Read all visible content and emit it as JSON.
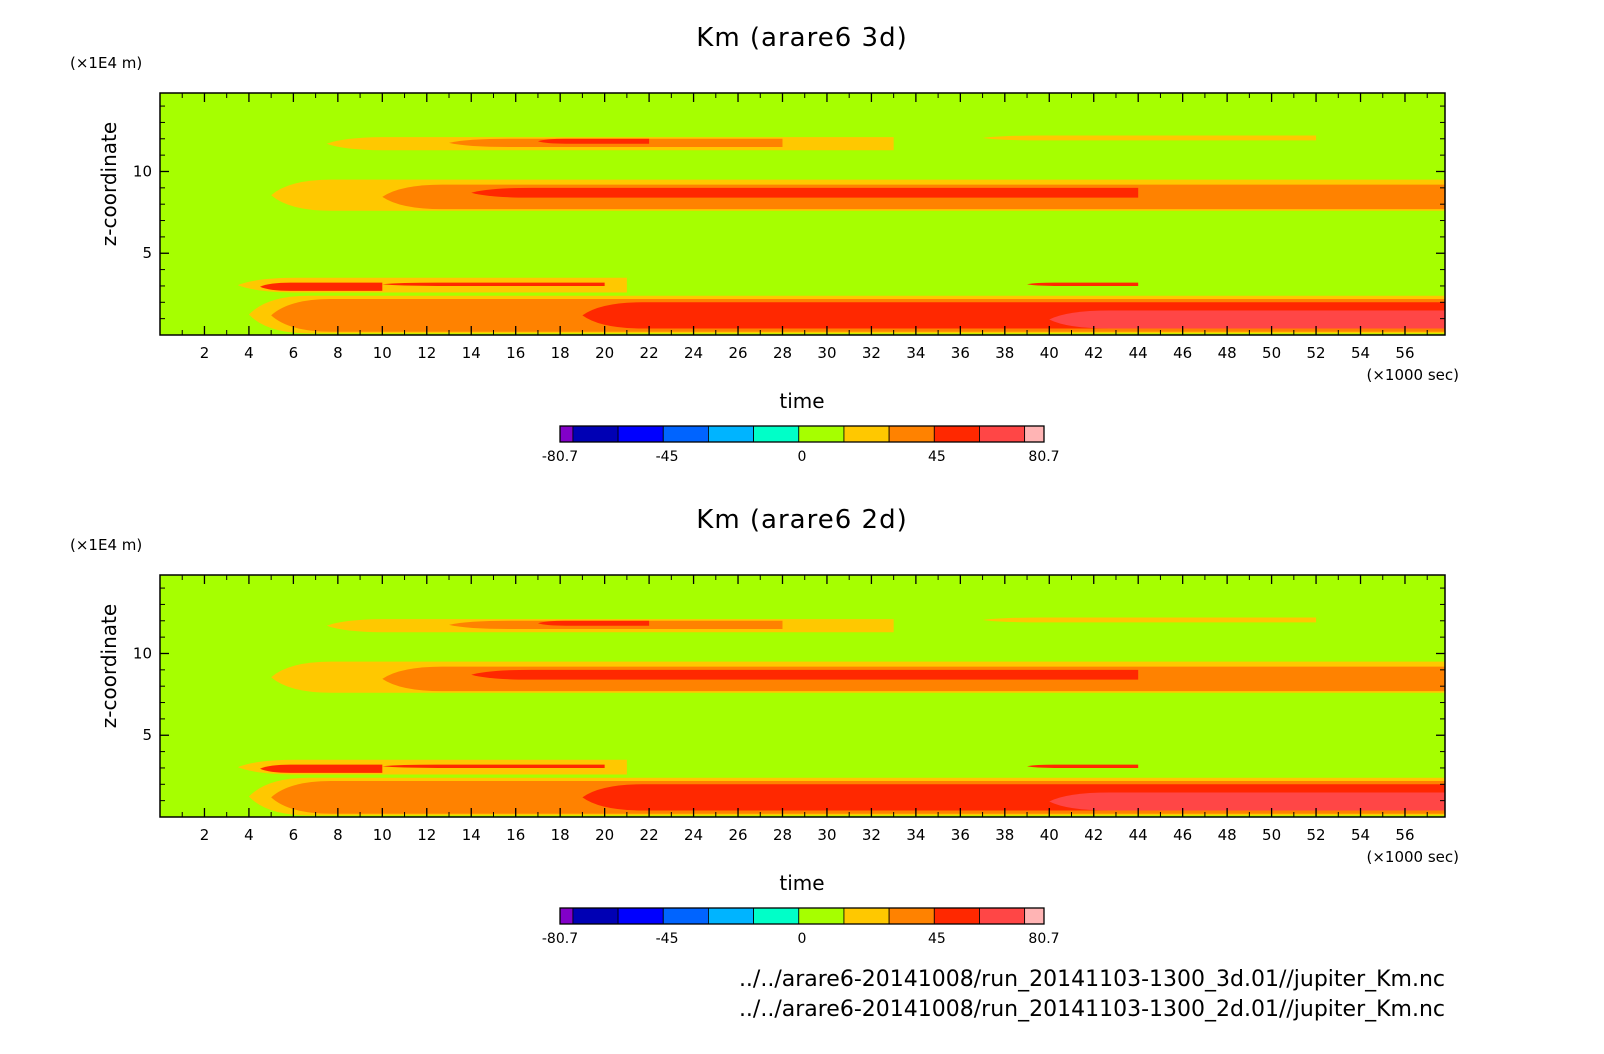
{
  "colors": {
    "bg": "#a6ff00",
    "orange_light": "#ffc800",
    "orange": "#ff8200",
    "red": "#ff2800",
    "red_light": "#ff4646",
    "colorbar": [
      "#8200c8",
      "#0000b4",
      "#0000ff",
      "#0064ff",
      "#00b4ff",
      "#00ffc8",
      "#a6ff00",
      "#ffc800",
      "#ff8200",
      "#ff2800",
      "#ff4646",
      "#ffb4b4"
    ]
  },
  "chart_data": [
    {
      "type": "heatmap",
      "title": "Km (arare6 3d)",
      "xlabel": "time",
      "ylabel": "z-coordinate",
      "x_unit": "(×1000 sec)",
      "y_unit": "(×1E4 m)",
      "xlim": [
        0,
        57.8
      ],
      "ylim": [
        0,
        14.8
      ],
      "x_ticks": [
        2,
        4,
        6,
        8,
        10,
        12,
        14,
        16,
        18,
        20,
        22,
        24,
        26,
        28,
        30,
        32,
        34,
        36,
        38,
        40,
        42,
        44,
        46,
        48,
        50,
        52,
        54,
        56
      ],
      "y_ticks": [
        5,
        10
      ],
      "bands": [
        {
          "level": "orange_light",
          "x": [
            7.5,
            33
          ],
          "y": [
            11.3,
            12.1
          ]
        },
        {
          "level": "orange",
          "x": [
            13,
            28
          ],
          "y": [
            11.5,
            12.0
          ]
        },
        {
          "level": "red",
          "x": [
            17,
            22
          ],
          "y": [
            11.7,
            12.0
          ]
        },
        {
          "level": "orange_light",
          "x": [
            37,
            52
          ],
          "y": [
            11.9,
            12.2
          ]
        },
        {
          "level": "orange_light",
          "x": [
            5,
            57.8
          ],
          "y": [
            7.6,
            9.5
          ]
        },
        {
          "level": "orange",
          "x": [
            10,
            57.8
          ],
          "y": [
            7.7,
            9.2
          ]
        },
        {
          "level": "red",
          "x": [
            14,
            44
          ],
          "y": [
            8.4,
            9.0
          ]
        },
        {
          "level": "orange_light",
          "x": [
            3.5,
            21
          ],
          "y": [
            2.6,
            3.5
          ]
        },
        {
          "level": "red",
          "x": [
            4.5,
            10
          ],
          "y": [
            2.7,
            3.2
          ]
        },
        {
          "level": "red",
          "x": [
            10,
            20
          ],
          "y": [
            3.0,
            3.2
          ]
        },
        {
          "level": "red",
          "x": [
            39,
            44
          ],
          "y": [
            3.0,
            3.2
          ]
        },
        {
          "level": "orange_light",
          "x": [
            4,
            57.8
          ],
          "y": [
            0.1,
            2.4
          ]
        },
        {
          "level": "orange",
          "x": [
            5,
            57.8
          ],
          "y": [
            0.2,
            2.2
          ]
        },
        {
          "level": "red",
          "x": [
            19,
            57.8
          ],
          "y": [
            0.4,
            2.0
          ]
        },
        {
          "level": "red_light",
          "x": [
            40,
            57.8
          ],
          "y": [
            0.4,
            1.5
          ]
        }
      ]
    },
    {
      "type": "heatmap",
      "title": "Km (arare6 2d)",
      "xlabel": "time",
      "ylabel": "z-coordinate",
      "x_unit": "(×1000 sec)",
      "y_unit": "(×1E4 m)",
      "xlim": [
        0,
        57.8
      ],
      "ylim": [
        0,
        14.8
      ],
      "x_ticks": [
        2,
        4,
        6,
        8,
        10,
        12,
        14,
        16,
        18,
        20,
        22,
        24,
        26,
        28,
        30,
        32,
        34,
        36,
        38,
        40,
        42,
        44,
        46,
        48,
        50,
        52,
        54,
        56
      ],
      "y_ticks": [
        5,
        10
      ],
      "bands": [
        {
          "level": "orange_light",
          "x": [
            7.5,
            33
          ],
          "y": [
            11.3,
            12.1
          ]
        },
        {
          "level": "orange",
          "x": [
            13,
            28
          ],
          "y": [
            11.5,
            12.0
          ]
        },
        {
          "level": "red",
          "x": [
            17,
            22
          ],
          "y": [
            11.7,
            12.0
          ]
        },
        {
          "level": "orange_light",
          "x": [
            37,
            52
          ],
          "y": [
            11.9,
            12.2
          ]
        },
        {
          "level": "orange_light",
          "x": [
            5,
            57.8
          ],
          "y": [
            7.6,
            9.5
          ]
        },
        {
          "level": "orange",
          "x": [
            10,
            57.8
          ],
          "y": [
            7.7,
            9.2
          ]
        },
        {
          "level": "red",
          "x": [
            14,
            44
          ],
          "y": [
            8.4,
            9.0
          ]
        },
        {
          "level": "orange_light",
          "x": [
            3.5,
            21
          ],
          "y": [
            2.6,
            3.5
          ]
        },
        {
          "level": "red",
          "x": [
            4.5,
            10
          ],
          "y": [
            2.7,
            3.2
          ]
        },
        {
          "level": "red",
          "x": [
            10,
            20
          ],
          "y": [
            3.0,
            3.2
          ]
        },
        {
          "level": "red",
          "x": [
            39,
            44
          ],
          "y": [
            3.0,
            3.2
          ]
        },
        {
          "level": "orange_light",
          "x": [
            4,
            57.8
          ],
          "y": [
            0.1,
            2.4
          ]
        },
        {
          "level": "orange",
          "x": [
            5,
            57.8
          ],
          "y": [
            0.2,
            2.2
          ]
        },
        {
          "level": "red",
          "x": [
            19,
            57.8
          ],
          "y": [
            0.4,
            2.0
          ]
        },
        {
          "level": "red_light",
          "x": [
            40,
            57.8
          ],
          "y": [
            0.4,
            1.5
          ]
        }
      ]
    }
  ],
  "colorbar": {
    "tick_labels": [
      "-80.7",
      "-45",
      "0",
      "45",
      "80.7"
    ],
    "tick_values": [
      -80.7,
      -45,
      0,
      45,
      80.7
    ],
    "range": [
      -80.7,
      80.7
    ]
  },
  "footer": {
    "line1": "../../arare6-20141008/run_20141103-1300_3d.01//jupiter_Km.nc",
    "line2": "../../arare6-20141008/run_20141103-1300_2d.01//jupiter_Km.nc"
  }
}
